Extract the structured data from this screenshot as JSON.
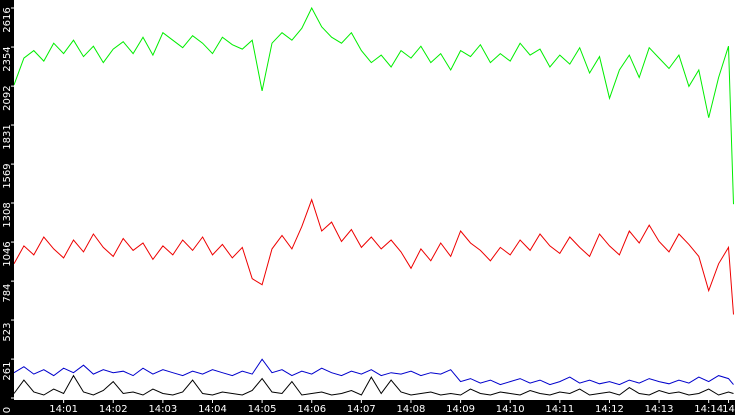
{
  "chart_data": {
    "type": "line",
    "xlim": [
      0,
      14.53
    ],
    "ylim": [
      0,
      2616
    ],
    "yticks": [
      0,
      261,
      523,
      784,
      1046,
      1308,
      1569,
      1831,
      2092,
      2354,
      2616
    ],
    "xticks": [
      {
        "value": 1,
        "label": "14:01"
      },
      {
        "value": 2,
        "label": "14:02"
      },
      {
        "value": 3,
        "label": "14:03"
      },
      {
        "value": 4,
        "label": "14:04"
      },
      {
        "value": 5,
        "label": "14:05"
      },
      {
        "value": 6,
        "label": "14:06"
      },
      {
        "value": 7,
        "label": "14:07"
      },
      {
        "value": 8,
        "label": "14:08"
      },
      {
        "value": 9,
        "label": "14:09"
      },
      {
        "value": 10,
        "label": "14:10"
      },
      {
        "value": 11,
        "label": "14:11"
      },
      {
        "value": 12,
        "label": "14:12"
      },
      {
        "value": 13,
        "label": "14:13"
      },
      {
        "value": 14,
        "label": "14:14"
      },
      {
        "value": 14.4,
        "label": "14"
      }
    ],
    "x": [
      0,
      0.2,
      0.4,
      0.6,
      0.8,
      1,
      1.2,
      1.4,
      1.6,
      1.8,
      2,
      2.2,
      2.4,
      2.6,
      2.8,
      3,
      3.2,
      3.4,
      3.6,
      3.8,
      4,
      4.2,
      4.4,
      4.6,
      4.8,
      5,
      5.2,
      5.4,
      5.6,
      5.8,
      6,
      6.2,
      6.4,
      6.6,
      6.8,
      7,
      7.2,
      7.4,
      7.6,
      7.8,
      8,
      8.2,
      8.4,
      8.6,
      8.8,
      9,
      9.2,
      9.4,
      9.6,
      9.8,
      10,
      10.2,
      10.4,
      10.6,
      10.8,
      11,
      11.2,
      11.4,
      11.6,
      11.8,
      12,
      12.2,
      12.4,
      12.6,
      12.8,
      13,
      13.2,
      13.4,
      13.6,
      13.8,
      14,
      14.2,
      14.4,
      14.5
    ],
    "series": [
      {
        "color": "#00ee00",
        "values": [
          2100,
          2280,
          2330,
          2260,
          2380,
          2310,
          2400,
          2290,
          2360,
          2250,
          2340,
          2390,
          2310,
          2420,
          2300,
          2450,
          2400,
          2350,
          2430,
          2380,
          2310,
          2420,
          2370,
          2340,
          2400,
          2060,
          2380,
          2450,
          2400,
          2480,
          2616,
          2490,
          2420,
          2380,
          2450,
          2330,
          2250,
          2300,
          2220,
          2330,
          2280,
          2360,
          2250,
          2310,
          2200,
          2330,
          2290,
          2370,
          2250,
          2310,
          2260,
          2380,
          2300,
          2340,
          2220,
          2300,
          2240,
          2350,
          2180,
          2290,
          2010,
          2200,
          2300,
          2150,
          2350,
          2280,
          2210,
          2300,
          2090,
          2200,
          1880,
          2150,
          2360,
          1300
        ]
      },
      {
        "color": "#ee0000",
        "values": [
          900,
          1020,
          960,
          1080,
          1000,
          940,
          1060,
          980,
          1100,
          1010,
          950,
          1070,
          990,
          1040,
          930,
          1020,
          960,
          1060,
          990,
          1080,
          960,
          1030,
          940,
          1010,
          800,
          760,
          1000,
          1090,
          1000,
          1150,
          1330,
          1120,
          1180,
          1050,
          1130,
          1010,
          1080,
          1000,
          1060,
          980,
          870,
          1000,
          920,
          1040,
          950,
          1120,
          1040,
          990,
          920,
          1010,
          960,
          1060,
          990,
          1100,
          1020,
          970,
          1080,
          1010,
          950,
          1100,
          1020,
          960,
          1120,
          1040,
          1160,
          1050,
          980,
          1100,
          1030,
          950,
          720,
          900,
          1010,
          560
        ]
      },
      {
        "color": "#0000cc",
        "values": [
          170,
          210,
          160,
          190,
          150,
          200,
          170,
          220,
          160,
          190,
          170,
          180,
          150,
          200,
          160,
          190,
          170,
          150,
          180,
          160,
          190,
          170,
          150,
          180,
          160,
          260,
          170,
          190,
          150,
          180,
          160,
          200,
          170,
          150,
          180,
          160,
          190,
          150,
          170,
          160,
          180,
          150,
          170,
          160,
          190,
          110,
          130,
          100,
          120,
          90,
          110,
          130,
          100,
          120,
          90,
          110,
          140,
          100,
          120,
          95,
          110,
          90,
          120,
          100,
          130,
          110,
          95,
          120,
          100,
          140,
          110,
          150,
          130,
          90
        ]
      },
      {
        "color": "#000000",
        "values": [
          30,
          120,
          40,
          20,
          60,
          30,
          150,
          40,
          20,
          50,
          110,
          30,
          40,
          20,
          60,
          30,
          20,
          40,
          120,
          30,
          20,
          40,
          30,
          20,
          50,
          130,
          40,
          30,
          110,
          20,
          30,
          40,
          20,
          30,
          50,
          20,
          140,
          30,
          120,
          40,
          20,
          30,
          40,
          20,
          30,
          20,
          60,
          30,
          20,
          40,
          30,
          20,
          50,
          30,
          20,
          40,
          30,
          60,
          20,
          30,
          40,
          20,
          70,
          30,
          20,
          50,
          30,
          40,
          20,
          30,
          60,
          20,
          40,
          30
        ]
      }
    ]
  }
}
